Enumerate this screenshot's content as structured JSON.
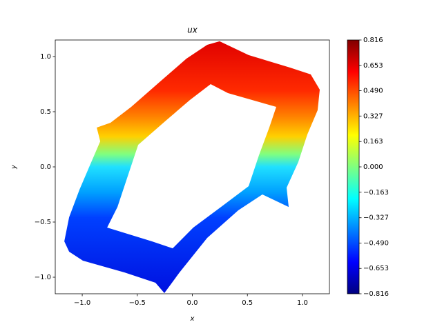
{
  "chart_data": {
    "type": "tripcolor",
    "title": "ux",
    "x_label": "x",
    "y_label": "y",
    "xlim": [
      -1.245,
      1.245
    ],
    "ylim": [
      -1.15,
      1.15
    ],
    "xticks": [
      {
        "value": -1,
        "label": "−1.0"
      },
      {
        "value": -0.5,
        "label": "−0.5"
      },
      {
        "value": 0,
        "label": "0.0"
      },
      {
        "value": 0.5,
        "label": "0.5"
      },
      {
        "value": 1,
        "label": "1.0"
      }
    ],
    "yticks": [
      {
        "value": -1,
        "label": "−1.0"
      },
      {
        "value": -0.5,
        "label": "−0.5"
      },
      {
        "value": 0,
        "label": "0.0"
      },
      {
        "value": 0.5,
        "label": "0.5"
      },
      {
        "value": 1,
        "label": "1.0"
      }
    ],
    "colormap": "jet",
    "colorbar": {
      "lim": [
        -0.816,
        0.816
      ],
      "ticks": [
        {
          "value": -0.816,
          "label": "−0.816"
        },
        {
          "value": -0.653,
          "label": "−0.653"
        },
        {
          "value": -0.49,
          "label": "−0.490"
        },
        {
          "value": -0.327,
          "label": "−0.327"
        },
        {
          "value": -0.163,
          "label": "−0.163"
        },
        {
          "value": 0,
          "label": "0.000"
        },
        0.163,
        0.327,
        {
          "value": 0.49,
          "label": "0.490"
        },
        0.653,
        0.816
      ]
    },
    "boundary": {
      "x": [
        0.248,
        0.511,
        0.887,
        1.075,
        1.157,
        1.138,
        1.044,
        0.962,
        0.856,
        0.875,
        0.636,
        0.417,
        0.135,
        -0.116,
        -0.254,
        -0.335,
        -0.618,
        -0.994,
        -1.119,
        -1.163,
        -1.119,
        -1.025,
        -0.931,
        -0.837,
        -0.868,
        -0.743,
        -0.555,
        -0.304,
        -0.053,
        0.135
      ],
      "y": [
        1.138,
        1.013,
        0.9,
        0.838,
        0.7,
        0.513,
        0.294,
        0.044,
        -0.188,
        -0.363,
        -0.25,
        -0.394,
        -0.644,
        -0.956,
        -1.144,
        -1.05,
        -0.956,
        -0.85,
        -0.769,
        -0.675,
        -0.456,
        -0.206,
        0.013,
        0.231,
        0.356,
        0.4,
        0.544,
        0.763,
        0.981,
        1.106
      ]
    },
    "hole": {
      "x": [
        0.166,
        0.323,
        0.762,
        0.699,
        0.605,
        0.511,
        0.26,
        0.009,
        -0.179,
        -0.367,
        -0.774,
        -0.68,
        -0.586,
        -0.492,
        -0.241,
        -0.022
      ],
      "y": [
        0.75,
        0.669,
        0.544,
        0.356,
        0.106,
        -0.175,
        -0.363,
        -0.55,
        -0.738,
        -0.675,
        -0.55,
        -0.363,
        -0.081,
        0.2,
        0.419,
        0.606
      ]
    }
  }
}
